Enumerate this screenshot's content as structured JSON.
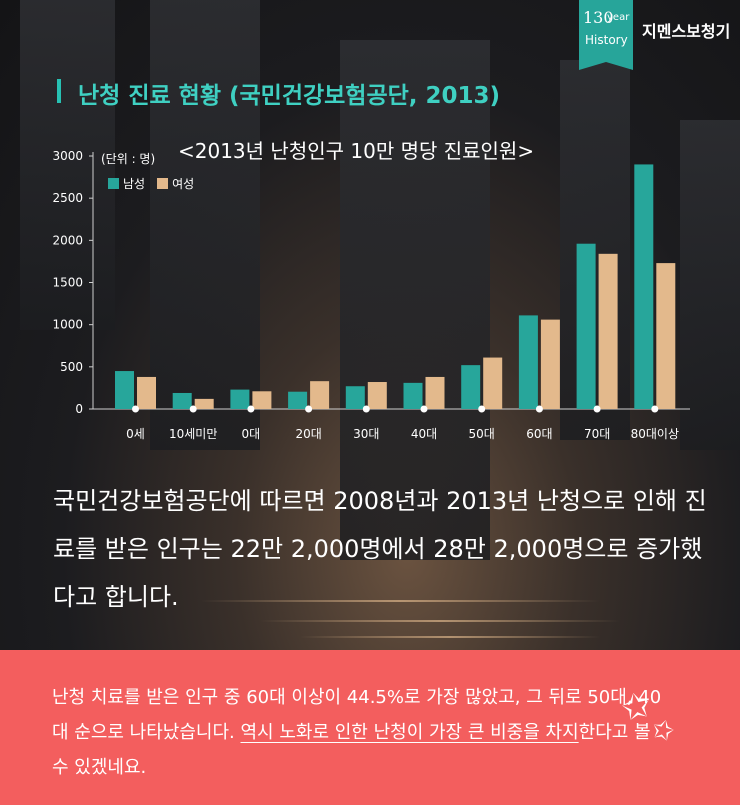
{
  "header": {
    "logo_number": "130",
    "logo_year": "year",
    "logo_history": "History",
    "brand": "지멘스보청기"
  },
  "title": "난청 진료 현황 (국민건강보험공단, 2013)",
  "colors": {
    "male": "#27a69b",
    "female": "#e3b98c",
    "title": "#3fd0c2",
    "panel": "#f35e5e"
  },
  "chart_data": {
    "type": "bar",
    "title": "<2013년 난청인구 10만 명당 진료인원>",
    "unit_label": "(단위 : 명)",
    "categories": [
      "0세",
      "10세미만",
      "0대",
      "20대",
      "30대",
      "40대",
      "50대",
      "60대",
      "70대",
      "80대이상"
    ],
    "series": [
      {
        "name": "남성",
        "values": [
          450,
          190,
          230,
          205,
          270,
          310,
          520,
          1110,
          1960,
          2900
        ]
      },
      {
        "name": "여성",
        "values": [
          380,
          120,
          210,
          330,
          320,
          380,
          610,
          1060,
          1840,
          1730
        ]
      }
    ],
    "yticks": [
      "0",
      "500",
      "1000",
      "1500",
      "2000",
      "2500",
      "3000"
    ],
    "ylim": [
      0,
      3000
    ],
    "legend_position": "top-left"
  },
  "body_text": "국민건강보험공단에 따르면 2008년과 2013년 난청으로 인해 진료를 받은 인구는 22만 2,000명에서 28만 2,000명으로 증가했다고 합니다.",
  "panel": {
    "text_plain": "난청 치료를 받은 인구 중 60대 이상이 44.5%로 가장 많았고, 그 뒤로 50대, 40대 순으로 나타났습니다. ",
    "text_highlight": "역시 노화로 인한 난청이 가장 큰 비중을 차지",
    "text_end": "한다고 볼 수 있겠네요."
  }
}
